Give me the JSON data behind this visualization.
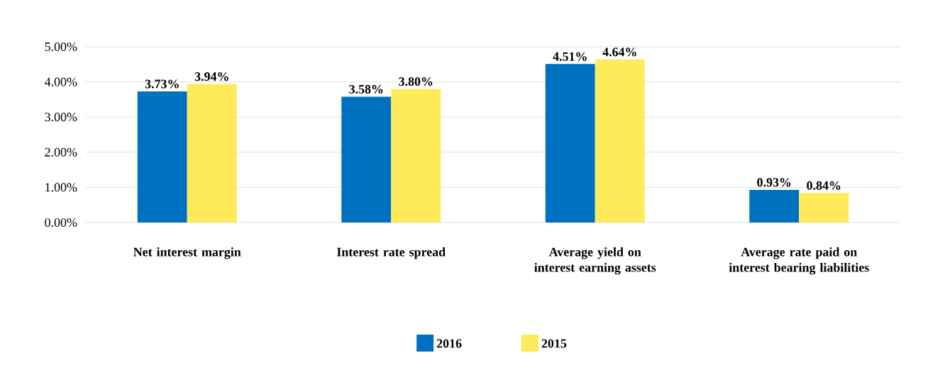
{
  "chart_data": {
    "type": "bar",
    "categories": [
      "Net interest margin",
      "Interest rate spread",
      "Average yield on interest earning assets",
      "Average rate paid on interest bearing liabilities"
    ],
    "series": [
      {
        "name": "2016",
        "color": "#0070c0",
        "values": [
          3.73,
          3.58,
          4.51,
          0.93
        ],
        "value_labels": [
          "3.73%",
          "3.58%",
          "4.51%",
          "0.93%"
        ]
      },
      {
        "name": "2015",
        "color": "#ffeb5a",
        "values": [
          3.94,
          3.8,
          4.64,
          0.84
        ],
        "value_labels": [
          "3.94%",
          "3.80%",
          "4.64%",
          "0.84%"
        ]
      }
    ],
    "ylim": [
      0,
      5
    ],
    "yticks": [
      {
        "value": 0,
        "label": "0.00%"
      },
      {
        "value": 1,
        "label": "1.00%"
      },
      {
        "value": 2,
        "label": "2.00%"
      },
      {
        "value": 3,
        "label": "3.00%"
      },
      {
        "value": 4,
        "label": "4.00%"
      },
      {
        "value": 5,
        "label": "5.00%"
      }
    ],
    "grid": "y",
    "legend": "bottom"
  }
}
